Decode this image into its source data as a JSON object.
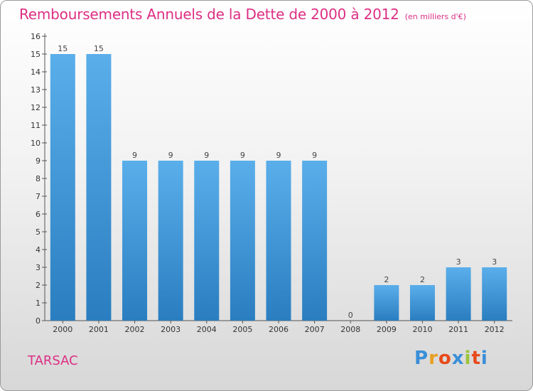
{
  "chart_data": {
    "type": "bar",
    "title": "Remboursements Annuels de la Dette de 2000 à 2012",
    "unit": "(en milliers d'€)",
    "categories": [
      "2000",
      "2001",
      "2002",
      "2003",
      "2004",
      "2005",
      "2006",
      "2007",
      "2008",
      "2009",
      "2010",
      "2011",
      "2012"
    ],
    "values": [
      15,
      15,
      9,
      9,
      9,
      9,
      9,
      9,
      0,
      2,
      2,
      3,
      3
    ],
    "ylim": [
      0,
      16
    ],
    "yticks": [
      0,
      1,
      2,
      3,
      4,
      5,
      6,
      7,
      8,
      9,
      10,
      11,
      12,
      13,
      14,
      15,
      16
    ],
    "grid": false,
    "legend": "none",
    "bar_color_top": "#5aaeea",
    "bar_color_bottom": "#2a7ec0"
  },
  "commune": "TARSAC",
  "logo": {
    "letters": [
      "P",
      "r",
      "o",
      "x",
      "i",
      "t",
      "i"
    ],
    "colors": [
      "#3a8fd8",
      "#e8a020",
      "#e84a1a",
      "#3a8fd8",
      "#9bc43a",
      "#e84a1a",
      "#3a8fd8"
    ]
  },
  "colors": {
    "accent": "#dd2f84"
  }
}
